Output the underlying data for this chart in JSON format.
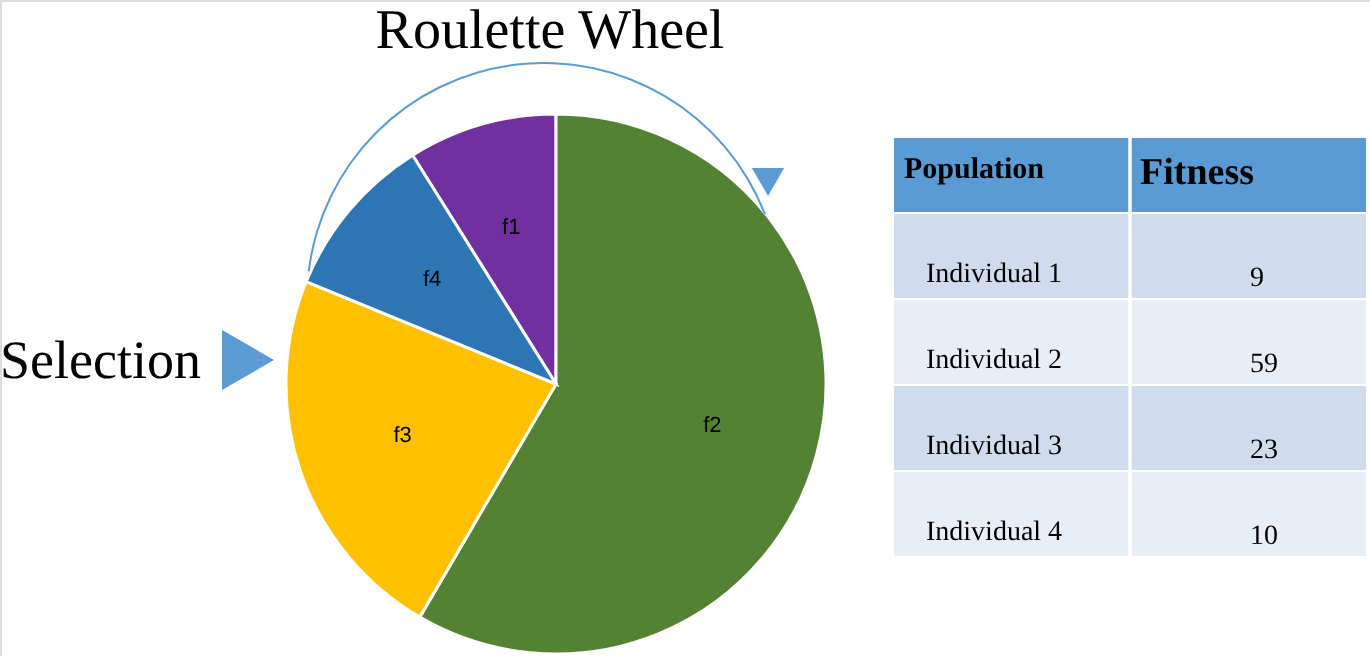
{
  "chart_data": {
    "type": "pie",
    "title": "Roulette Wheel",
    "categories": [
      "f1",
      "f2",
      "f3",
      "f4"
    ],
    "values": [
      9,
      59,
      23,
      10
    ],
    "colors": [
      "#7030a0",
      "#548235",
      "#ffc000",
      "#2e75b6"
    ],
    "annotations": [
      "Selection",
      "Population",
      "Fitness",
      "Individual 1",
      "9",
      "Individual 2",
      "59",
      "Individual 3",
      "23",
      "Individual 4",
      "10"
    ]
  }
}
